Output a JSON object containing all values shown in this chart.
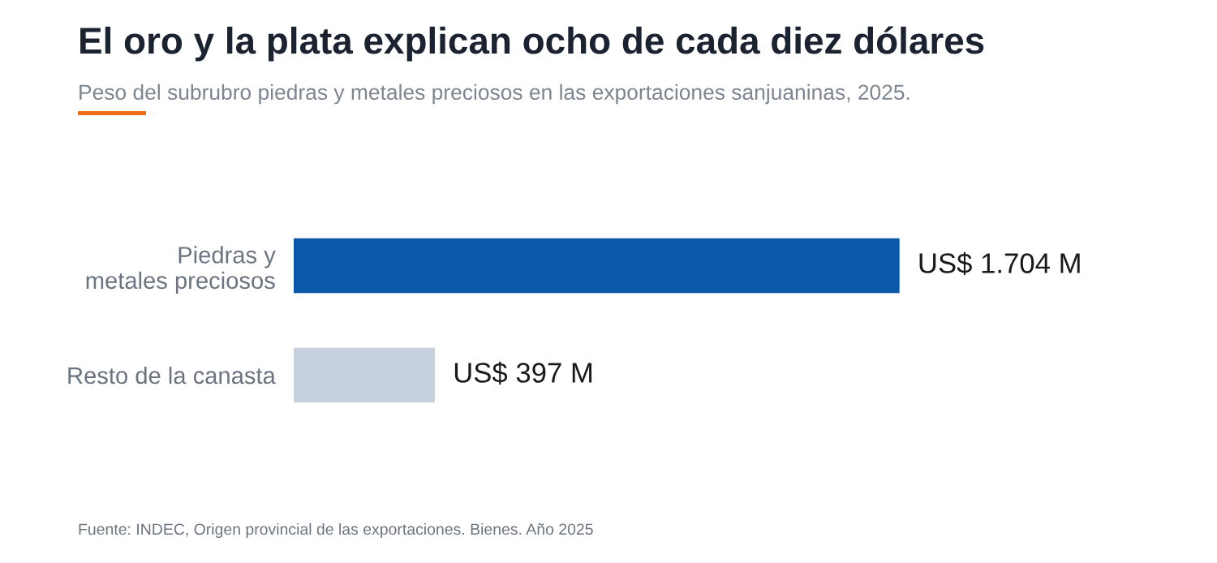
{
  "chart_data": {
    "type": "bar",
    "orientation": "horizontal",
    "title": "El oro y la plata explican ocho de cada diez dólares",
    "subtitle": "Peso del subrubro piedras y metales preciosos en las exportaciones sanjuaninas, 2025.",
    "categories": [
      "Piedras y metales preciosos",
      "Resto de la canasta"
    ],
    "values": [
      1704,
      397
    ],
    "colors": [
      "#0b57a8",
      "#c7d1dd"
    ],
    "value_labels": [
      "US$ 1.704 M",
      "US$ 397 M"
    ],
    "annotations": [
      "Fuente: INDEC, Origen provincial de las exportaciones. Bienes. Año 2025"
    ],
    "grid": false,
    "legend": false,
    "tick_labels": "y"
  }
}
